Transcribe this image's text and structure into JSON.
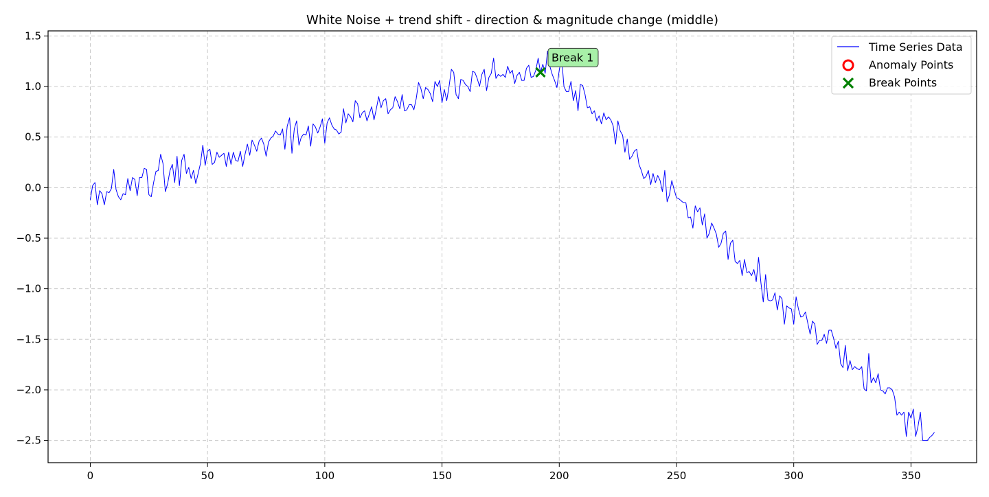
{
  "chart_data": {
    "type": "line",
    "title": "White Noise + trend shift - direction & magnitude change (middle)",
    "xlabel": "",
    "ylabel": "",
    "xlim": [
      -18,
      378
    ],
    "ylim": [
      -2.72,
      1.55
    ],
    "x_ticks": [
      0,
      50,
      100,
      150,
      200,
      250,
      300,
      350
    ],
    "y_ticks": [
      1.5,
      1.0,
      0.5,
      0.0,
      -0.5,
      -1.0,
      -1.5,
      -2.0,
      -2.5
    ],
    "x_tick_labels": [
      "0",
      "50",
      "100",
      "150",
      "200",
      "250",
      "300",
      "350"
    ],
    "y_tick_labels": [
      "1.5",
      "1.0",
      "0.5",
      "0.0",
      "−0.5",
      "−1.0",
      "−1.5",
      "−2.0",
      "−2.5"
    ],
    "grid": true,
    "legend_position": "top-right",
    "colors": {
      "series": "#0000ff",
      "anomaly": "#ff0000",
      "break": "#008000",
      "annotation_bg": "#a8f0a8"
    },
    "series": [
      {
        "name": "Time Series Data",
        "x_start": 0,
        "x_step": 1,
        "values": [
          -0.12,
          0.02,
          0.05,
          -0.17,
          -0.03,
          -0.06,
          -0.17,
          -0.04,
          -0.05,
          -0.01,
          0.18,
          -0.02,
          -0.09,
          -0.12,
          -0.06,
          -0.07,
          0.09,
          -0.03,
          0.1,
          0.08,
          -0.08,
          0.1,
          0.1,
          0.19,
          0.18,
          -0.07,
          -0.09,
          0.05,
          0.16,
          0.17,
          0.33,
          0.24,
          -0.04,
          0.04,
          0.17,
          0.23,
          0.05,
          0.31,
          0.02,
          0.27,
          0.33,
          0.14,
          0.2,
          0.09,
          0.17,
          0.04,
          0.14,
          0.24,
          0.42,
          0.22,
          0.36,
          0.38,
          0.23,
          0.25,
          0.35,
          0.3,
          0.32,
          0.34,
          0.21,
          0.35,
          0.23,
          0.35,
          0.27,
          0.26,
          0.36,
          0.21,
          0.33,
          0.43,
          0.32,
          0.47,
          0.42,
          0.36,
          0.46,
          0.49,
          0.43,
          0.31,
          0.45,
          0.49,
          0.51,
          0.56,
          0.53,
          0.52,
          0.58,
          0.38,
          0.61,
          0.69,
          0.34,
          0.58,
          0.66,
          0.42,
          0.5,
          0.53,
          0.52,
          0.61,
          0.41,
          0.63,
          0.6,
          0.54,
          0.6,
          0.68,
          0.44,
          0.64,
          0.69,
          0.62,
          0.58,
          0.57,
          0.53,
          0.55,
          0.78,
          0.64,
          0.73,
          0.7,
          0.65,
          0.86,
          0.83,
          0.69,
          0.74,
          0.76,
          0.66,
          0.73,
          0.8,
          0.67,
          0.78,
          0.9,
          0.79,
          0.86,
          0.88,
          0.73,
          0.77,
          0.79,
          0.9,
          0.85,
          0.78,
          0.92,
          0.76,
          0.77,
          0.82,
          0.82,
          0.77,
          0.88,
          1.04,
          0.98,
          0.88,
          0.99,
          0.97,
          0.93,
          0.85,
          1.05,
          1.0,
          1.06,
          0.84,
          0.97,
          0.86,
          1.0,
          1.17,
          1.14,
          0.92,
          0.88,
          1.07,
          1.06,
          1.02,
          1.0,
          0.95,
          1.15,
          1.14,
          1.08,
          1.0,
          1.12,
          1.17,
          0.96,
          1.09,
          1.13,
          1.28,
          1.08,
          1.12,
          1.1,
          1.12,
          1.09,
          1.2,
          1.13,
          1.16,
          1.03,
          1.11,
          1.14,
          1.06,
          1.06,
          1.18,
          1.21,
          1.09,
          1.1,
          1.16,
          1.28,
          1.14,
          1.22,
          1.13,
          1.35,
          1.2,
          1.12,
          1.06,
          0.99,
          1.16,
          1.29,
          1.0,
          0.95,
          0.95,
          1.05,
          0.86,
          0.96,
          0.76,
          1.02,
          1.01,
          0.92,
          0.79,
          0.8,
          0.73,
          0.76,
          0.66,
          0.71,
          0.63,
          0.74,
          0.67,
          0.7,
          0.67,
          0.61,
          0.43,
          0.66,
          0.56,
          0.52,
          0.35,
          0.48,
          0.28,
          0.31,
          0.36,
          0.38,
          0.23,
          0.17,
          0.09,
          0.11,
          0.17,
          0.03,
          0.14,
          0.05,
          0.12,
          0.07,
          -0.04,
          0.17,
          -0.14,
          -0.07,
          0.07,
          -0.02,
          -0.1,
          -0.11,
          -0.13,
          -0.15,
          -0.15,
          -0.3,
          -0.29,
          -0.4,
          -0.18,
          -0.24,
          -0.2,
          -0.37,
          -0.26,
          -0.5,
          -0.45,
          -0.35,
          -0.4,
          -0.46,
          -0.59,
          -0.55,
          -0.45,
          -0.43,
          -0.71,
          -0.55,
          -0.52,
          -0.73,
          -0.75,
          -0.72,
          -0.87,
          -0.71,
          -0.84,
          -0.83,
          -0.87,
          -0.81,
          -0.93,
          -0.69,
          -0.94,
          -1.13,
          -0.86,
          -1.11,
          -1.12,
          -1.11,
          -1.04,
          -1.21,
          -1.07,
          -1.1,
          -1.35,
          -1.17,
          -1.19,
          -1.2,
          -1.35,
          -1.08,
          -1.2,
          -1.28,
          -1.27,
          -1.23,
          -1.34,
          -1.45,
          -1.32,
          -1.35,
          -1.55,
          -1.51,
          -1.51,
          -1.45,
          -1.54,
          -1.41,
          -1.41,
          -1.49,
          -1.59,
          -1.52,
          -1.74,
          -1.78,
          -1.56,
          -1.81,
          -1.71,
          -1.8,
          -1.77,
          -1.79,
          -1.8,
          -1.77,
          -1.99,
          -2.01,
          -1.64,
          -1.93,
          -1.88,
          -1.93,
          -1.84,
          -2.0,
          -2.01,
          -2.04,
          -1.98,
          -1.98,
          -2.0,
          -2.07,
          -2.25,
          -2.22,
          -2.25,
          -2.22,
          -2.46,
          -2.22,
          -2.28,
          -2.19,
          -2.46,
          -2.36,
          -2.22,
          -2.5,
          -2.5,
          -2.5,
          -2.47,
          -2.45,
          -2.42
        ]
      },
      {
        "name": "Anomaly Points",
        "points": []
      },
      {
        "name": "Break Points",
        "points": [
          {
            "x": 192,
            "y": 1.14
          }
        ]
      }
    ],
    "annotations": [
      {
        "text": "Break 1",
        "x": 192,
        "y": 1.14
      }
    ]
  }
}
